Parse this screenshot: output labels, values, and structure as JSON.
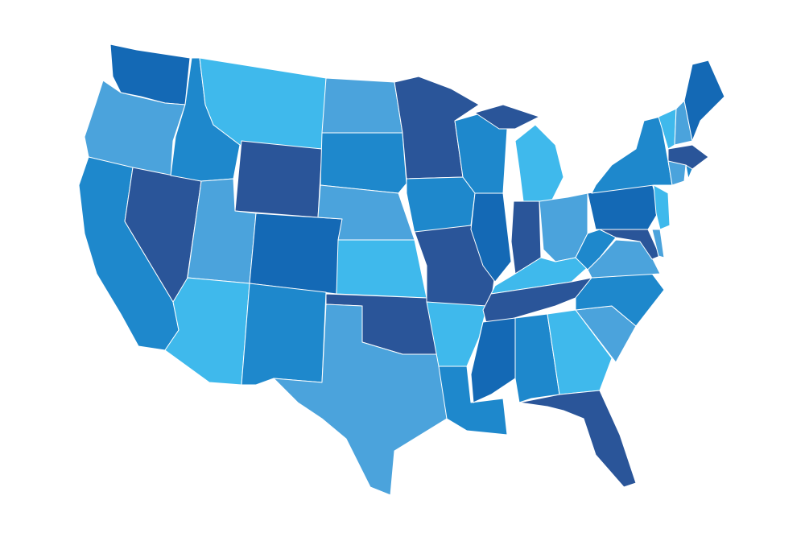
{
  "map": {
    "colors": [
      "#2a5599",
      "#1469b5",
      "#1e88cc",
      "#4ba3dc",
      "#3fb9ec"
    ]
  }
}
